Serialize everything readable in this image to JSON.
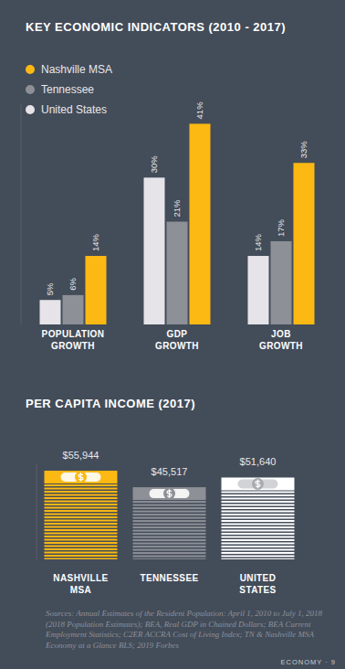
{
  "chart_data": [
    {
      "type": "bar",
      "title": "KEY ECONOMIC INDICATORS (2010 - 2017)",
      "categories": [
        "POPULATION GROWTH",
        "GDP GROWTH",
        "JOB GROWTH"
      ],
      "series": [
        {
          "name": "Nashville MSA",
          "color": "#fdb913",
          "values": [
            14,
            41,
            33
          ],
          "value_labels": [
            "14%",
            "41%",
            "33%"
          ]
        },
        {
          "name": "Tennessee",
          "color": "#8e9097",
          "values": [
            6,
            21,
            17
          ],
          "value_labels": [
            "6%",
            "21%",
            "17%"
          ]
        },
        {
          "name": "United States",
          "color": "#e6e4e8",
          "values": [
            5,
            30,
            14
          ],
          "value_labels": [
            "5%",
            "30%",
            "14%"
          ]
        }
      ],
      "ylim": [
        0,
        45
      ],
      "legend": "top-left",
      "data_labels": true,
      "tick_labels": "x"
    },
    {
      "type": "bar",
      "title": "PER CAPITA INCOME (2017)",
      "categories": [
        "NASHVILLE MSA",
        "TENNESSEE",
        "UNITED STATES"
      ],
      "values": [
        55944,
        45517,
        51640
      ],
      "value_labels": [
        "$55,944",
        "$45,517",
        "$51,640"
      ],
      "colors": [
        "#fdb913",
        "#8e9097",
        "#ffffff"
      ],
      "ylim": [
        0,
        60000
      ],
      "data_labels": true,
      "tick_labels": "x"
    }
  ],
  "sources": "Sources: Annual Estimates of the Resident Population: April 1, 2010 to July 1, 2018 (2018 Population Estimates); BEA, Real GDP in Chained Dollars; BEA Current Employment Statistics; C2ER ACCRA Cost of Living Index; TN & Nashville MSA Economy at a Glance BLS; 2019 Forbes",
  "page_label": "ECONOMY · 9"
}
